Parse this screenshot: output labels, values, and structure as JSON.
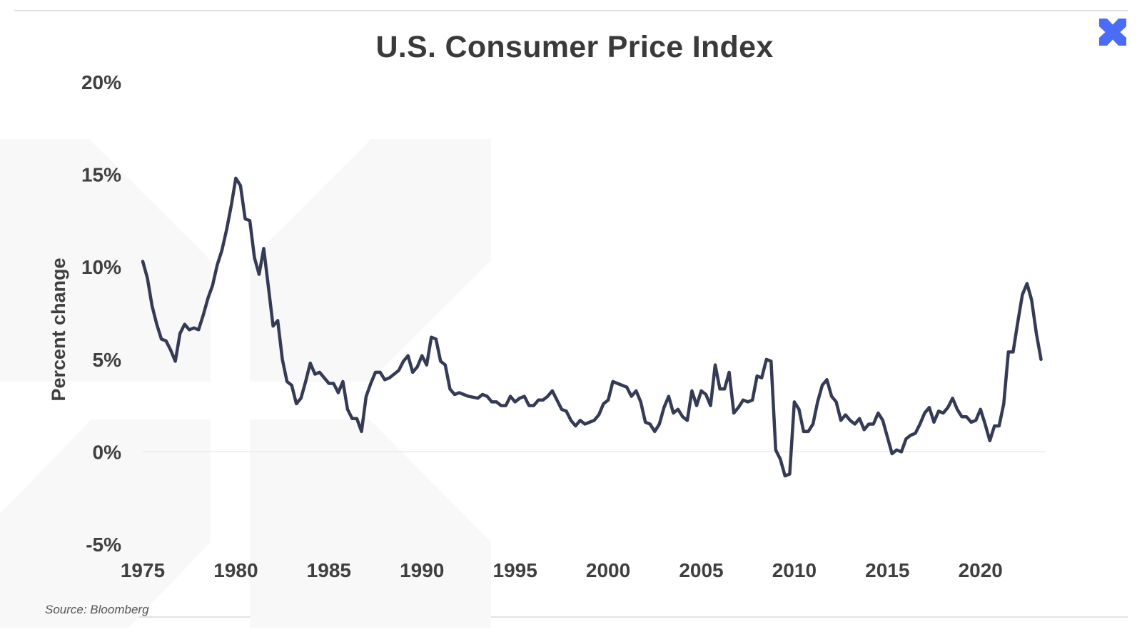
{
  "header": {
    "title": "U.S. Consumer Price Index"
  },
  "logo": {
    "icon": "brand-x-icon",
    "color": "#4a6cf7"
  },
  "source": {
    "text": "Source: Bloomberg"
  },
  "chart_data": {
    "type": "line",
    "title": "U.S. Consumer Price Index",
    "xlabel": "",
    "ylabel": "Percent change",
    "xlim": [
      1975,
      2023.5
    ],
    "ylim": [
      -5,
      20
    ],
    "x_ticks": [
      1975,
      1980,
      1985,
      1990,
      1995,
      2000,
      2005,
      2010,
      2015,
      2020
    ],
    "x_tick_labels": [
      "1975",
      "1980",
      "1985",
      "1990",
      "1995",
      "2000",
      "2005",
      "2010",
      "2015",
      "2020"
    ],
    "y_ticks": [
      -5,
      0,
      5,
      10,
      15,
      20
    ],
    "y_tick_labels": [
      "-5%",
      "0%",
      "5%",
      "10%",
      "15%",
      "20%"
    ],
    "grid": false,
    "zero_line": true,
    "legend": "none",
    "line_color": "#353b55",
    "series": [
      {
        "name": "",
        "x": [
          1975.0,
          1975.25,
          1975.5,
          1975.75,
          1976.0,
          1976.25,
          1976.5,
          1976.75,
          1977.0,
          1977.25,
          1977.5,
          1977.75,
          1978.0,
          1978.25,
          1978.5,
          1978.75,
          1979.0,
          1979.25,
          1979.5,
          1979.75,
          1980.0,
          1980.25,
          1980.5,
          1980.75,
          1981.0,
          1981.25,
          1981.5,
          1981.75,
          1982.0,
          1982.25,
          1982.5,
          1982.75,
          1983.0,
          1983.25,
          1983.5,
          1983.75,
          1984.0,
          1984.25,
          1984.5,
          1984.75,
          1985.0,
          1985.25,
          1985.5,
          1985.75,
          1986.0,
          1986.25,
          1986.5,
          1986.75,
          1987.0,
          1987.25,
          1987.5,
          1987.75,
          1988.0,
          1988.25,
          1988.5,
          1988.75,
          1989.0,
          1989.25,
          1989.5,
          1989.75,
          1990.0,
          1990.25,
          1990.5,
          1990.75,
          1991.0,
          1991.25,
          1991.5,
          1991.75,
          1992.0,
          1992.5,
          1993.0,
          1993.25,
          1993.5,
          1993.75,
          1994.0,
          1994.25,
          1994.5,
          1994.75,
          1995.0,
          1995.25,
          1995.5,
          1995.75,
          1996.0,
          1996.25,
          1996.5,
          1996.75,
          1997.0,
          1997.25,
          1997.5,
          1997.75,
          1998.0,
          1998.25,
          1998.5,
          1998.75,
          1999.0,
          1999.25,
          1999.5,
          1999.75,
          2000.0,
          2000.25,
          2000.5,
          2000.75,
          2001.0,
          2001.25,
          2001.5,
          2001.75,
          2002.0,
          2002.25,
          2002.5,
          2002.75,
          2003.0,
          2003.25,
          2003.5,
          2003.75,
          2004.0,
          2004.25,
          2004.5,
          2004.75,
          2005.0,
          2005.25,
          2005.5,
          2005.75,
          2006.0,
          2006.25,
          2006.5,
          2006.75,
          2007.0,
          2007.25,
          2007.5,
          2007.75,
          2008.0,
          2008.25,
          2008.5,
          2008.75,
          2009.0,
          2009.25,
          2009.5,
          2009.75,
          2010.0,
          2010.25,
          2010.5,
          2010.75,
          2011.0,
          2011.25,
          2011.5,
          2011.75,
          2012.0,
          2012.25,
          2012.5,
          2012.75,
          2013.0,
          2013.25,
          2013.5,
          2013.75,
          2014.0,
          2014.25,
          2014.5,
          2014.75,
          2015.0,
          2015.25,
          2015.5,
          2015.75,
          2016.0,
          2016.25,
          2016.5,
          2016.75,
          2017.0,
          2017.25,
          2017.5,
          2017.75,
          2018.0,
          2018.25,
          2018.5,
          2018.75,
          2019.0,
          2019.25,
          2019.5,
          2019.75,
          2020.0,
          2020.25,
          2020.5,
          2020.75,
          2021.0,
          2021.25,
          2021.5,
          2021.75,
          2022.0,
          2022.25,
          2022.5,
          2022.75,
          2023.0,
          2023.25
        ],
        "values": [
          10.3,
          9.4,
          7.9,
          6.9,
          6.1,
          6.0,
          5.5,
          4.9,
          6.4,
          6.9,
          6.6,
          6.7,
          6.6,
          7.4,
          8.3,
          9.0,
          10.1,
          10.9,
          12.0,
          13.3,
          14.8,
          14.4,
          12.6,
          12.5,
          10.5,
          9.6,
          11.0,
          8.9,
          6.8,
          7.1,
          5.0,
          3.8,
          3.6,
          2.6,
          2.9,
          3.8,
          4.8,
          4.2,
          4.3,
          4.0,
          3.7,
          3.7,
          3.2,
          3.8,
          2.3,
          1.8,
          1.8,
          1.1,
          3.0,
          3.7,
          4.3,
          4.3,
          3.9,
          4.0,
          4.2,
          4.4,
          4.9,
          5.2,
          4.3,
          4.6,
          5.2,
          4.7,
          6.2,
          6.1,
          4.9,
          4.7,
          3.4,
          3.1,
          3.2,
          3.0,
          2.9,
          3.1,
          3.0,
          2.7,
          2.7,
          2.5,
          2.5,
          3.0,
          2.7,
          2.9,
          3.0,
          2.5,
          2.5,
          2.8,
          2.8,
          3.0,
          3.3,
          2.8,
          2.3,
          2.2,
          1.7,
          1.4,
          1.7,
          1.5,
          1.6,
          1.7,
          2.0,
          2.6,
          2.8,
          3.8,
          3.7,
          3.6,
          3.5,
          3.0,
          3.3,
          2.7,
          1.6,
          1.5,
          1.1,
          1.5,
          2.4,
          3.0,
          2.1,
          2.3,
          1.9,
          1.7,
          3.3,
          2.5,
          3.3,
          3.1,
          2.5,
          4.7,
          3.4,
          3.4,
          4.3,
          2.1,
          2.4,
          2.8,
          2.7,
          2.8,
          4.1,
          4.0,
          5.0,
          4.9,
          0.1,
          -0.4,
          -1.3,
          -1.2,
          2.7,
          2.3,
          1.1,
          1.1,
          1.5,
          2.7,
          3.6,
          3.9,
          3.0,
          2.7,
          1.7,
          2.0,
          1.7,
          1.5,
          1.8,
          1.2,
          1.5,
          1.5,
          2.1,
          1.7,
          0.8,
          -0.1,
          0.1,
          0.0,
          0.7,
          0.9,
          1.0,
          1.5,
          2.1,
          2.4,
          1.6,
          2.2,
          2.1,
          2.4,
          2.9,
          2.3,
          1.9,
          1.9,
          1.6,
          1.7,
          2.3,
          1.5,
          0.6,
          1.4,
          1.4,
          2.6,
          5.4,
          5.4,
          7.0,
          8.5,
          9.1,
          8.2,
          6.4,
          5.0
        ]
      }
    ]
  }
}
